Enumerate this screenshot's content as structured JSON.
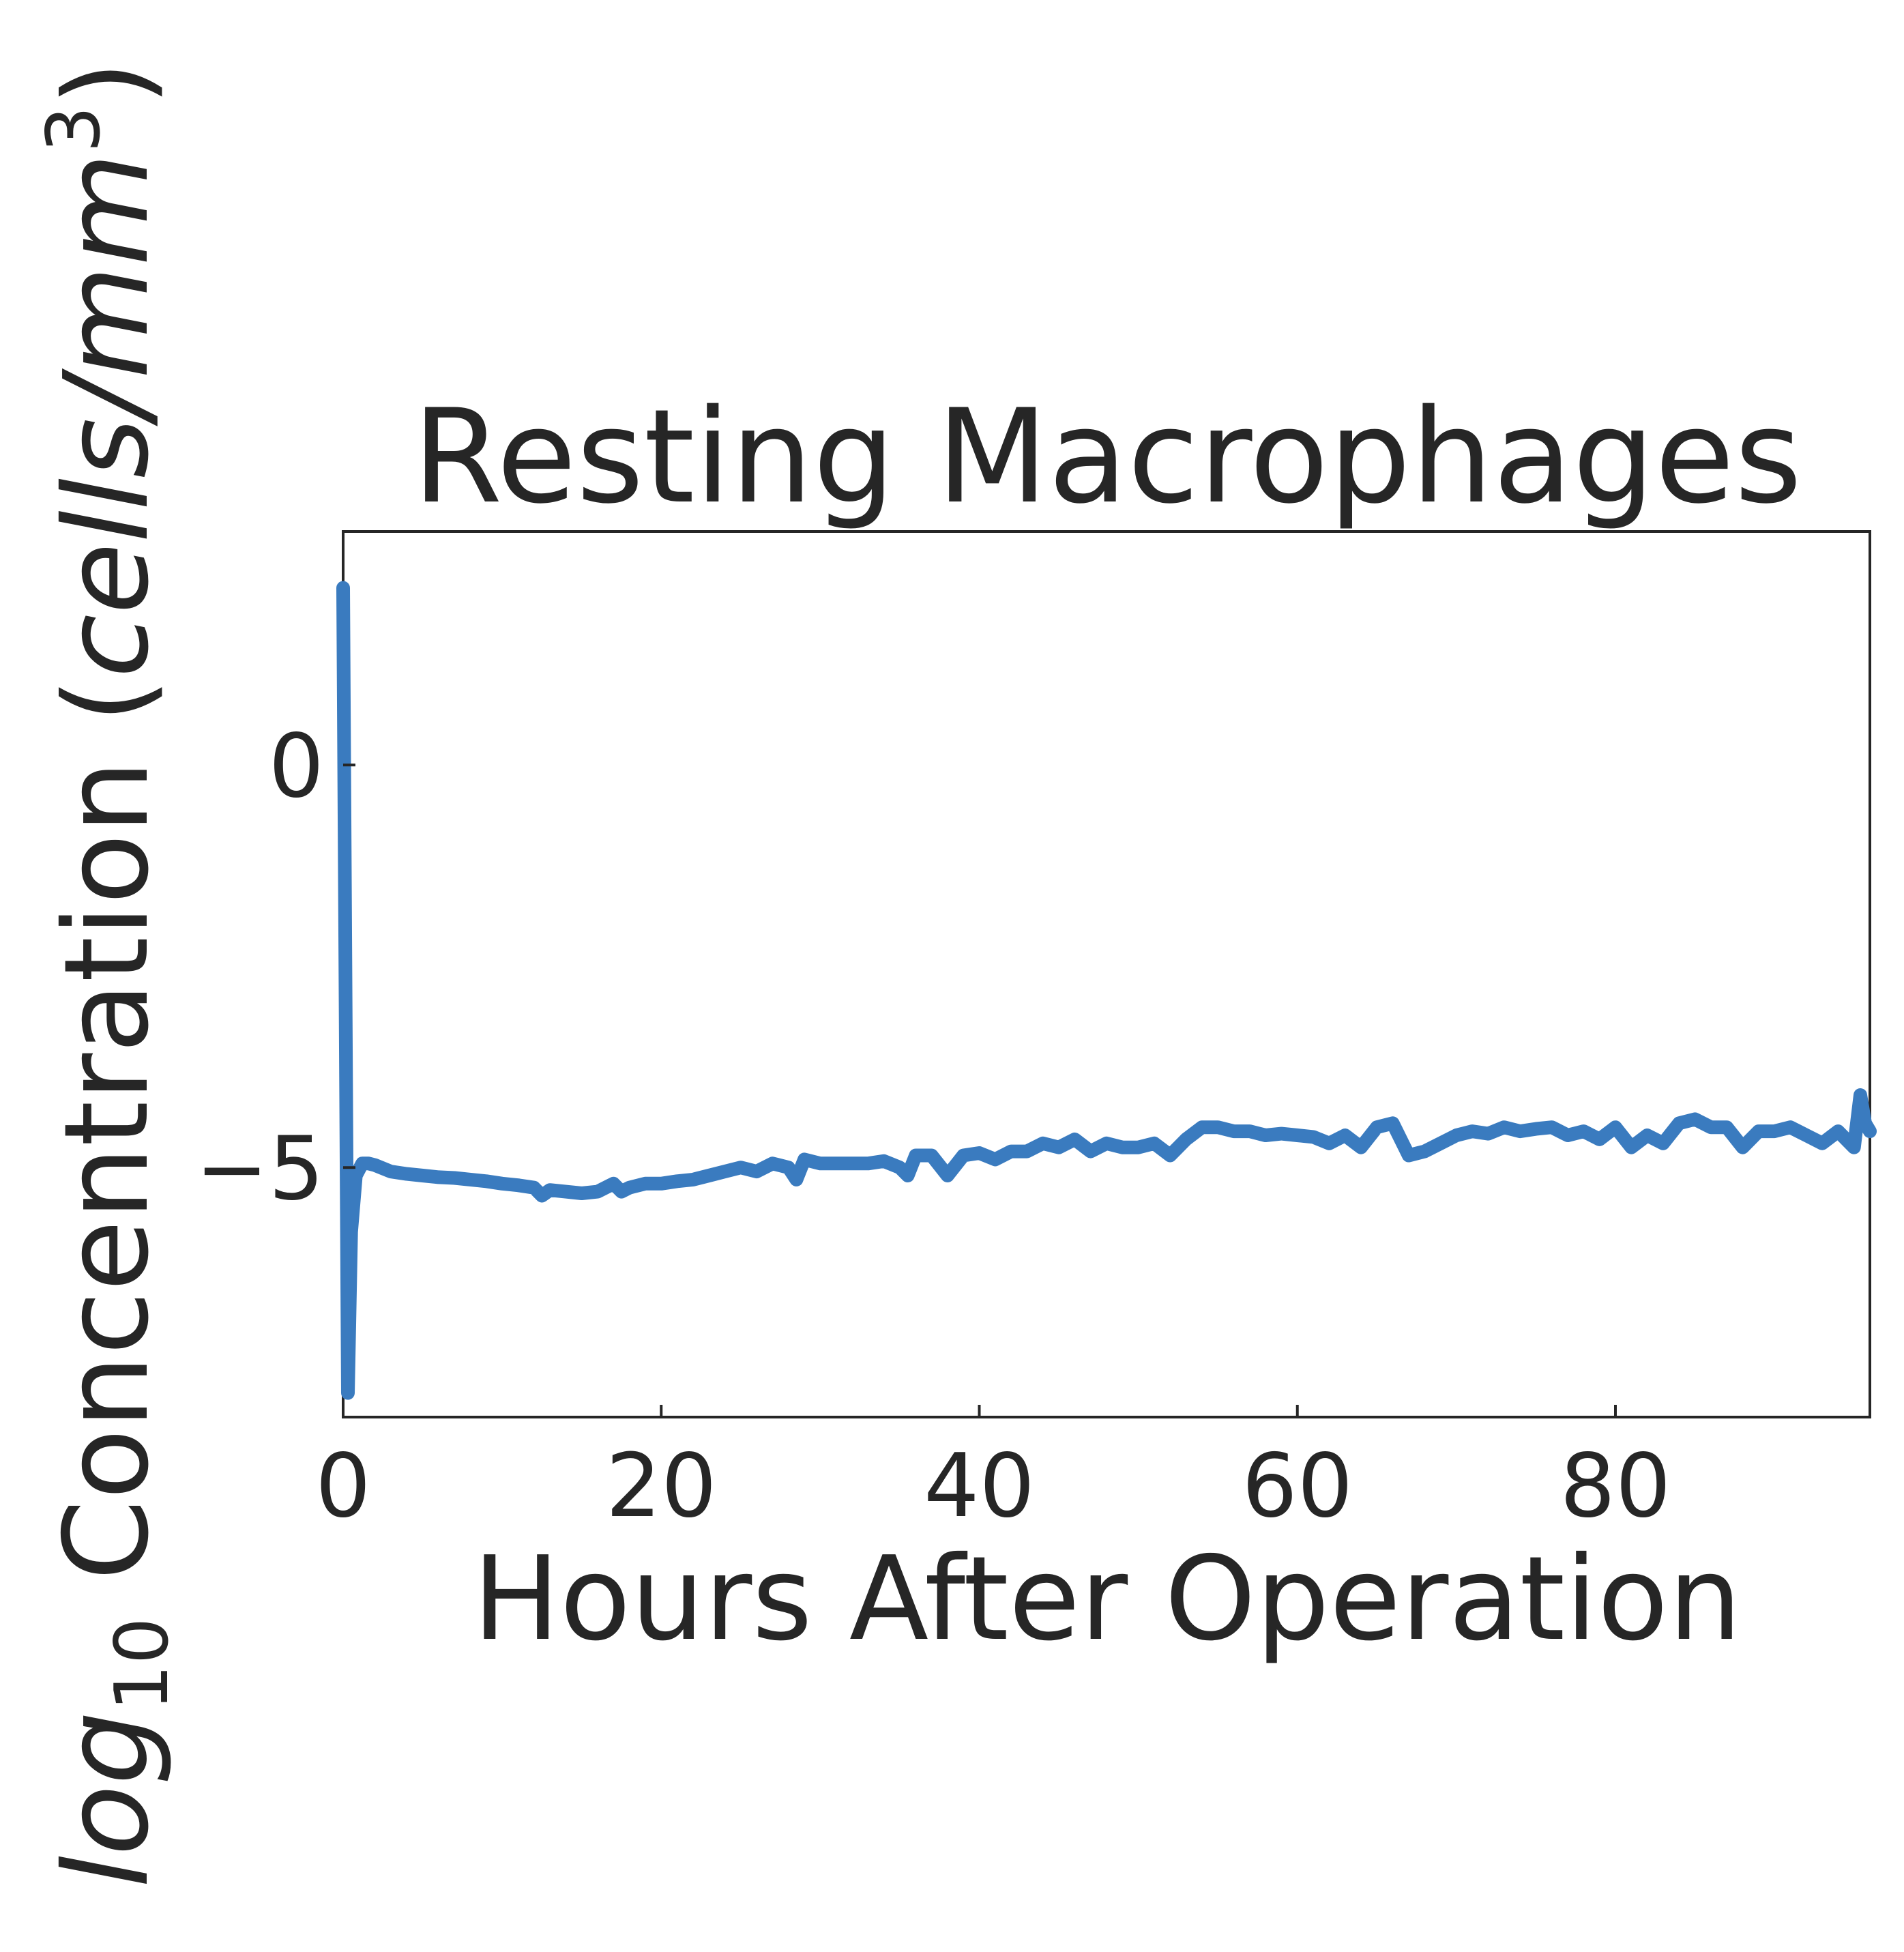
{
  "chart_data": {
    "type": "line",
    "title": "Resting Macrophages",
    "xlabel": "Hours After Operation",
    "ylabel": {
      "prefix": "log",
      "subscript": "10",
      "middle": " Concentration (",
      "units": "cells/mm",
      "superscript": "3",
      "suffix": ")"
    },
    "xlim": [
      0,
      96
    ],
    "ylim": [
      -8.1,
      2.9
    ],
    "x_ticks": [
      0,
      20,
      40,
      60,
      80
    ],
    "y_ticks": [
      0,
      -5
    ],
    "x_tick_labels": [
      "0",
      "20",
      "40",
      "60",
      "80"
    ],
    "y_tick_labels": [
      "0",
      "−5"
    ],
    "grid": false,
    "line_color": "#3a7bbf",
    "series": [
      {
        "x": [
          0,
          0.3,
          0.5,
          0.8,
          1.2,
          1.6,
          2,
          3,
          4,
          5,
          6,
          7,
          8,
          9,
          10,
          11,
          12,
          12.5,
          13,
          14,
          15,
          16,
          17,
          17.5,
          18,
          19,
          20,
          21,
          22,
          23,
          24,
          25,
          26,
          27,
          28,
          28.5,
          29,
          30,
          31,
          32,
          33,
          34,
          35,
          35.5,
          36,
          37,
          38,
          39,
          40,
          41,
          42,
          43,
          44,
          45,
          46,
          47,
          48,
          49,
          50,
          51,
          52,
          53,
          54,
          55,
          56,
          57,
          58,
          59,
          60,
          61,
          62,
          63,
          64,
          65,
          66,
          67,
          68,
          69,
          70,
          71,
          72,
          73,
          74,
          75,
          76,
          77,
          78,
          79,
          80,
          81,
          82,
          83,
          84,
          85,
          86,
          87,
          88,
          89,
          90,
          91,
          92,
          93,
          94,
          95,
          95.4,
          95.7,
          96
        ],
        "y": [
          2.2,
          -7.8,
          -5.8,
          -5.1,
          -4.95,
          -4.95,
          -4.97,
          -5.05,
          -5.08,
          -5.1,
          -5.12,
          -5.13,
          -5.15,
          -5.17,
          -5.2,
          -5.22,
          -5.25,
          -5.35,
          -5.28,
          -5.3,
          -5.32,
          -5.3,
          -5.2,
          -5.3,
          -5.25,
          -5.2,
          -5.2,
          -5.17,
          -5.15,
          -5.1,
          -5.05,
          -5.0,
          -5.05,
          -4.95,
          -5.0,
          -5.15,
          -4.9,
          -4.95,
          -4.95,
          -4.95,
          -4.95,
          -4.92,
          -5.0,
          -5.1,
          -4.85,
          -4.85,
          -5.1,
          -4.85,
          -4.82,
          -4.9,
          -4.8,
          -4.8,
          -4.7,
          -4.75,
          -4.65,
          -4.8,
          -4.7,
          -4.75,
          -4.75,
          -4.7,
          -4.85,
          -4.65,
          -4.5,
          -4.5,
          -4.55,
          -4.55,
          -4.6,
          -4.58,
          -4.6,
          -4.62,
          -4.7,
          -4.6,
          -4.75,
          -4.5,
          -4.45,
          -4.85,
          -4.8,
          -4.7,
          -4.6,
          -4.55,
          -4.58,
          -4.5,
          -4.55,
          -4.52,
          -4.5,
          -4.6,
          -4.55,
          -4.65,
          -4.5,
          -4.75,
          -4.6,
          -4.7,
          -4.45,
          -4.4,
          -4.5,
          -4.5,
          -4.75,
          -4.55,
          -4.55,
          -4.5,
          -4.6,
          -4.7,
          -4.55,
          -4.75,
          -4.1,
          -4.45,
          -4.55
        ]
      }
    ]
  }
}
